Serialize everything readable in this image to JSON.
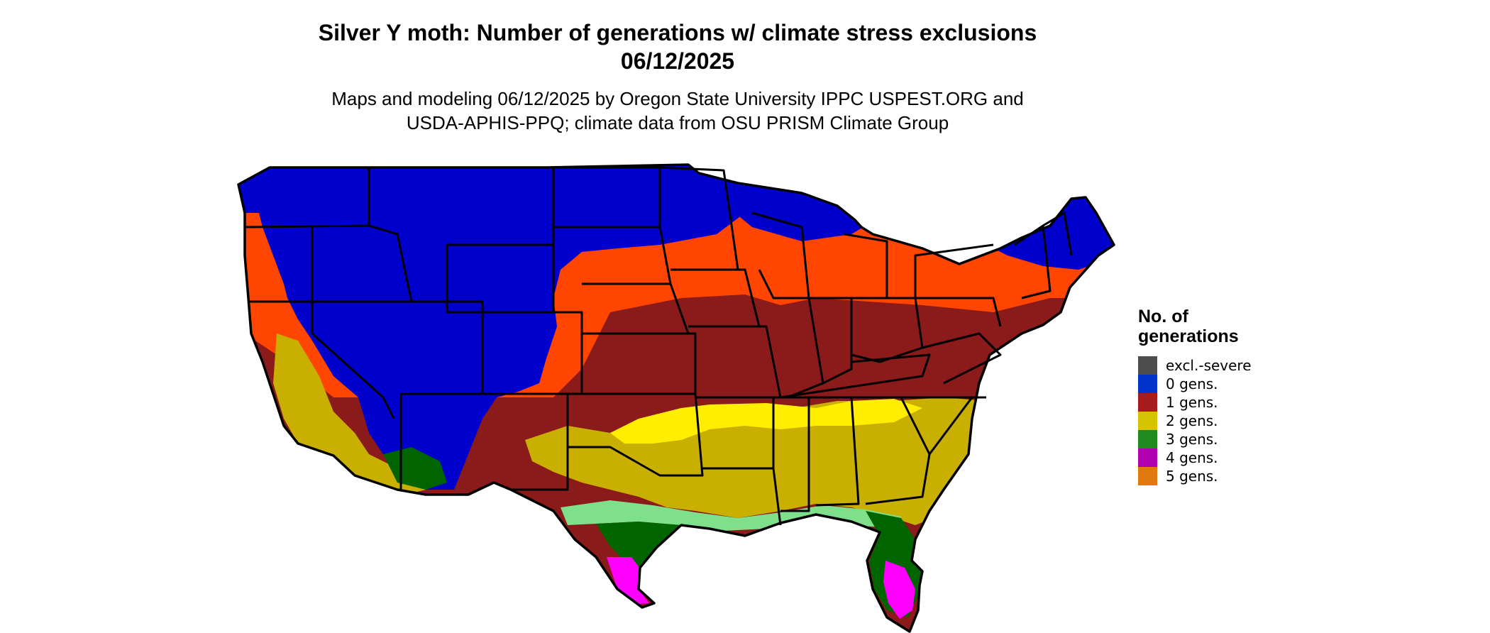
{
  "title_line1": "Silver Y moth: Number of generations w/ climate stress exclusions",
  "title_line2": "06/12/2025",
  "subtitle_line1": "Maps and modeling 06/12/2025 by Oregon State University IPPC USPEST.ORG and",
  "subtitle_line2": "USDA-APHIS-PPQ; climate data from OSU PRISM Climate Group",
  "legend": {
    "title_line1": "No. of",
    "title_line2": "generations",
    "items": [
      {
        "label": "excl.-severe",
        "color": "#4d4d4d"
      },
      {
        "label": "0 gens.",
        "color": "#0033cc"
      },
      {
        "label": "1 gens.",
        "color": "#a61c1c"
      },
      {
        "label": "2 gens.",
        "color": "#d4c400"
      },
      {
        "label": "3 gens.",
        "color": "#1f8a1f"
      },
      {
        "label": "4 gens.",
        "color": "#b000b0"
      },
      {
        "label": "5 gens.",
        "color": "#e07a10"
      }
    ]
  },
  "map_colors": {
    "zero": "#0000cc",
    "one_light": "#ff4500",
    "one": "#8b1a1a",
    "two": "#c9b000",
    "two_bright": "#ffee00",
    "three_light": "#7ee08a",
    "three": "#006400",
    "four": "#ff00ff"
  }
}
